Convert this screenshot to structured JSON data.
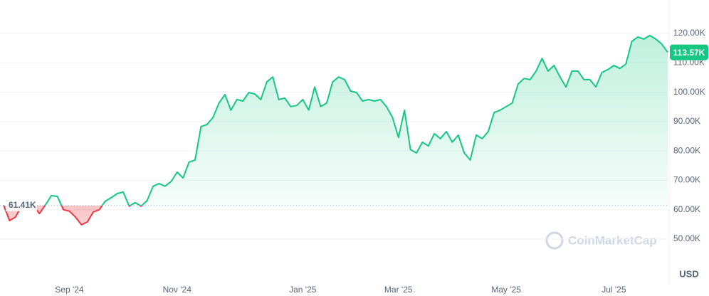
{
  "chart_data": {
    "type": "line",
    "series": [
      {
        "name": null,
        "color": "#16c784",
        "below_color": "#ea3943",
        "values": [
          61600,
          56300,
          57500,
          61200,
          62000,
          61200,
          58700,
          61600,
          64800,
          64500,
          60000,
          59500,
          57500,
          54900,
          55800,
          59200,
          60000,
          62900,
          64100,
          65500,
          66000,
          61200,
          62400,
          61200,
          63100,
          68000,
          68900,
          68000,
          69600,
          72800,
          70800,
          76200,
          76900,
          88300,
          89000,
          91400,
          96300,
          99200,
          93900,
          97500,
          97000,
          99900,
          99400,
          97500,
          103500,
          105200,
          97500,
          98000,
          95100,
          95500,
          97500,
          93900,
          101800,
          95100,
          96300,
          103500,
          105200,
          104300,
          100400,
          99900,
          97000,
          97500,
          97000,
          97500,
          95100,
          91400,
          84600,
          93900,
          80500,
          79300,
          83000,
          81700,
          85900,
          84200,
          86600,
          83000,
          85400,
          79300,
          76900,
          85400,
          84200,
          86600,
          93100,
          93900,
          95100,
          96300,
          102800,
          104700,
          104300,
          107200,
          111500,
          107200,
          109100,
          105200,
          101800,
          107200,
          107200,
          104300,
          104300,
          101800,
          106700,
          107700,
          109100,
          108100,
          109600,
          117300,
          118800,
          118100,
          119300,
          118100,
          116400,
          113570
        ]
      }
    ],
    "categories": [
      null,
      null,
      null,
      null,
      null,
      null,
      null,
      null,
      null,
      null,
      null,
      "Sep '24",
      null,
      null,
      null,
      null,
      null,
      null,
      null,
      null,
      null,
      null,
      null,
      null,
      null,
      null,
      null,
      null,
      null,
      "Nov '24",
      null,
      null,
      null,
      null,
      null,
      null,
      null,
      null,
      null,
      null,
      null,
      null,
      null,
      null,
      null,
      null,
      null,
      null,
      null,
      null,
      "Jan '25",
      null,
      null,
      null,
      null,
      null,
      null,
      null,
      null,
      null,
      null,
      null,
      null,
      null,
      null,
      null,
      "Mar '25",
      null,
      null,
      null,
      null,
      null,
      null,
      null,
      null,
      null,
      null,
      null,
      null,
      null,
      null,
      null,
      null,
      null,
      "May '25",
      null,
      null,
      null,
      null,
      null,
      null,
      null,
      null,
      null,
      null,
      null,
      null,
      null,
      null,
      null,
      null,
      null,
      "Jul '25",
      null,
      null,
      null,
      null,
      null,
      null,
      null,
      null,
      null
    ],
    "ylim": [
      35700,
      131400
    ],
    "yticks": [
      {
        "value": 50000,
        "label": "50.00K"
      },
      {
        "value": 60000,
        "label": "60.00K"
      },
      {
        "value": 70000,
        "label": "70.00K"
      },
      {
        "value": 80000,
        "label": "80.00K"
      },
      {
        "value": 90000,
        "label": "90.00K"
      },
      {
        "value": 100000,
        "label": "100.00K"
      },
      {
        "value": 110000,
        "label": "110.00K"
      },
      {
        "value": 120000,
        "label": "120.00K"
      }
    ],
    "baseline": {
      "value": 61410,
      "label": "61.41K"
    },
    "last_price": {
      "value": 113570,
      "label": "113.57K"
    },
    "watermark": "CoinMarketCap",
    "currency": "USD",
    "grid": true
  }
}
